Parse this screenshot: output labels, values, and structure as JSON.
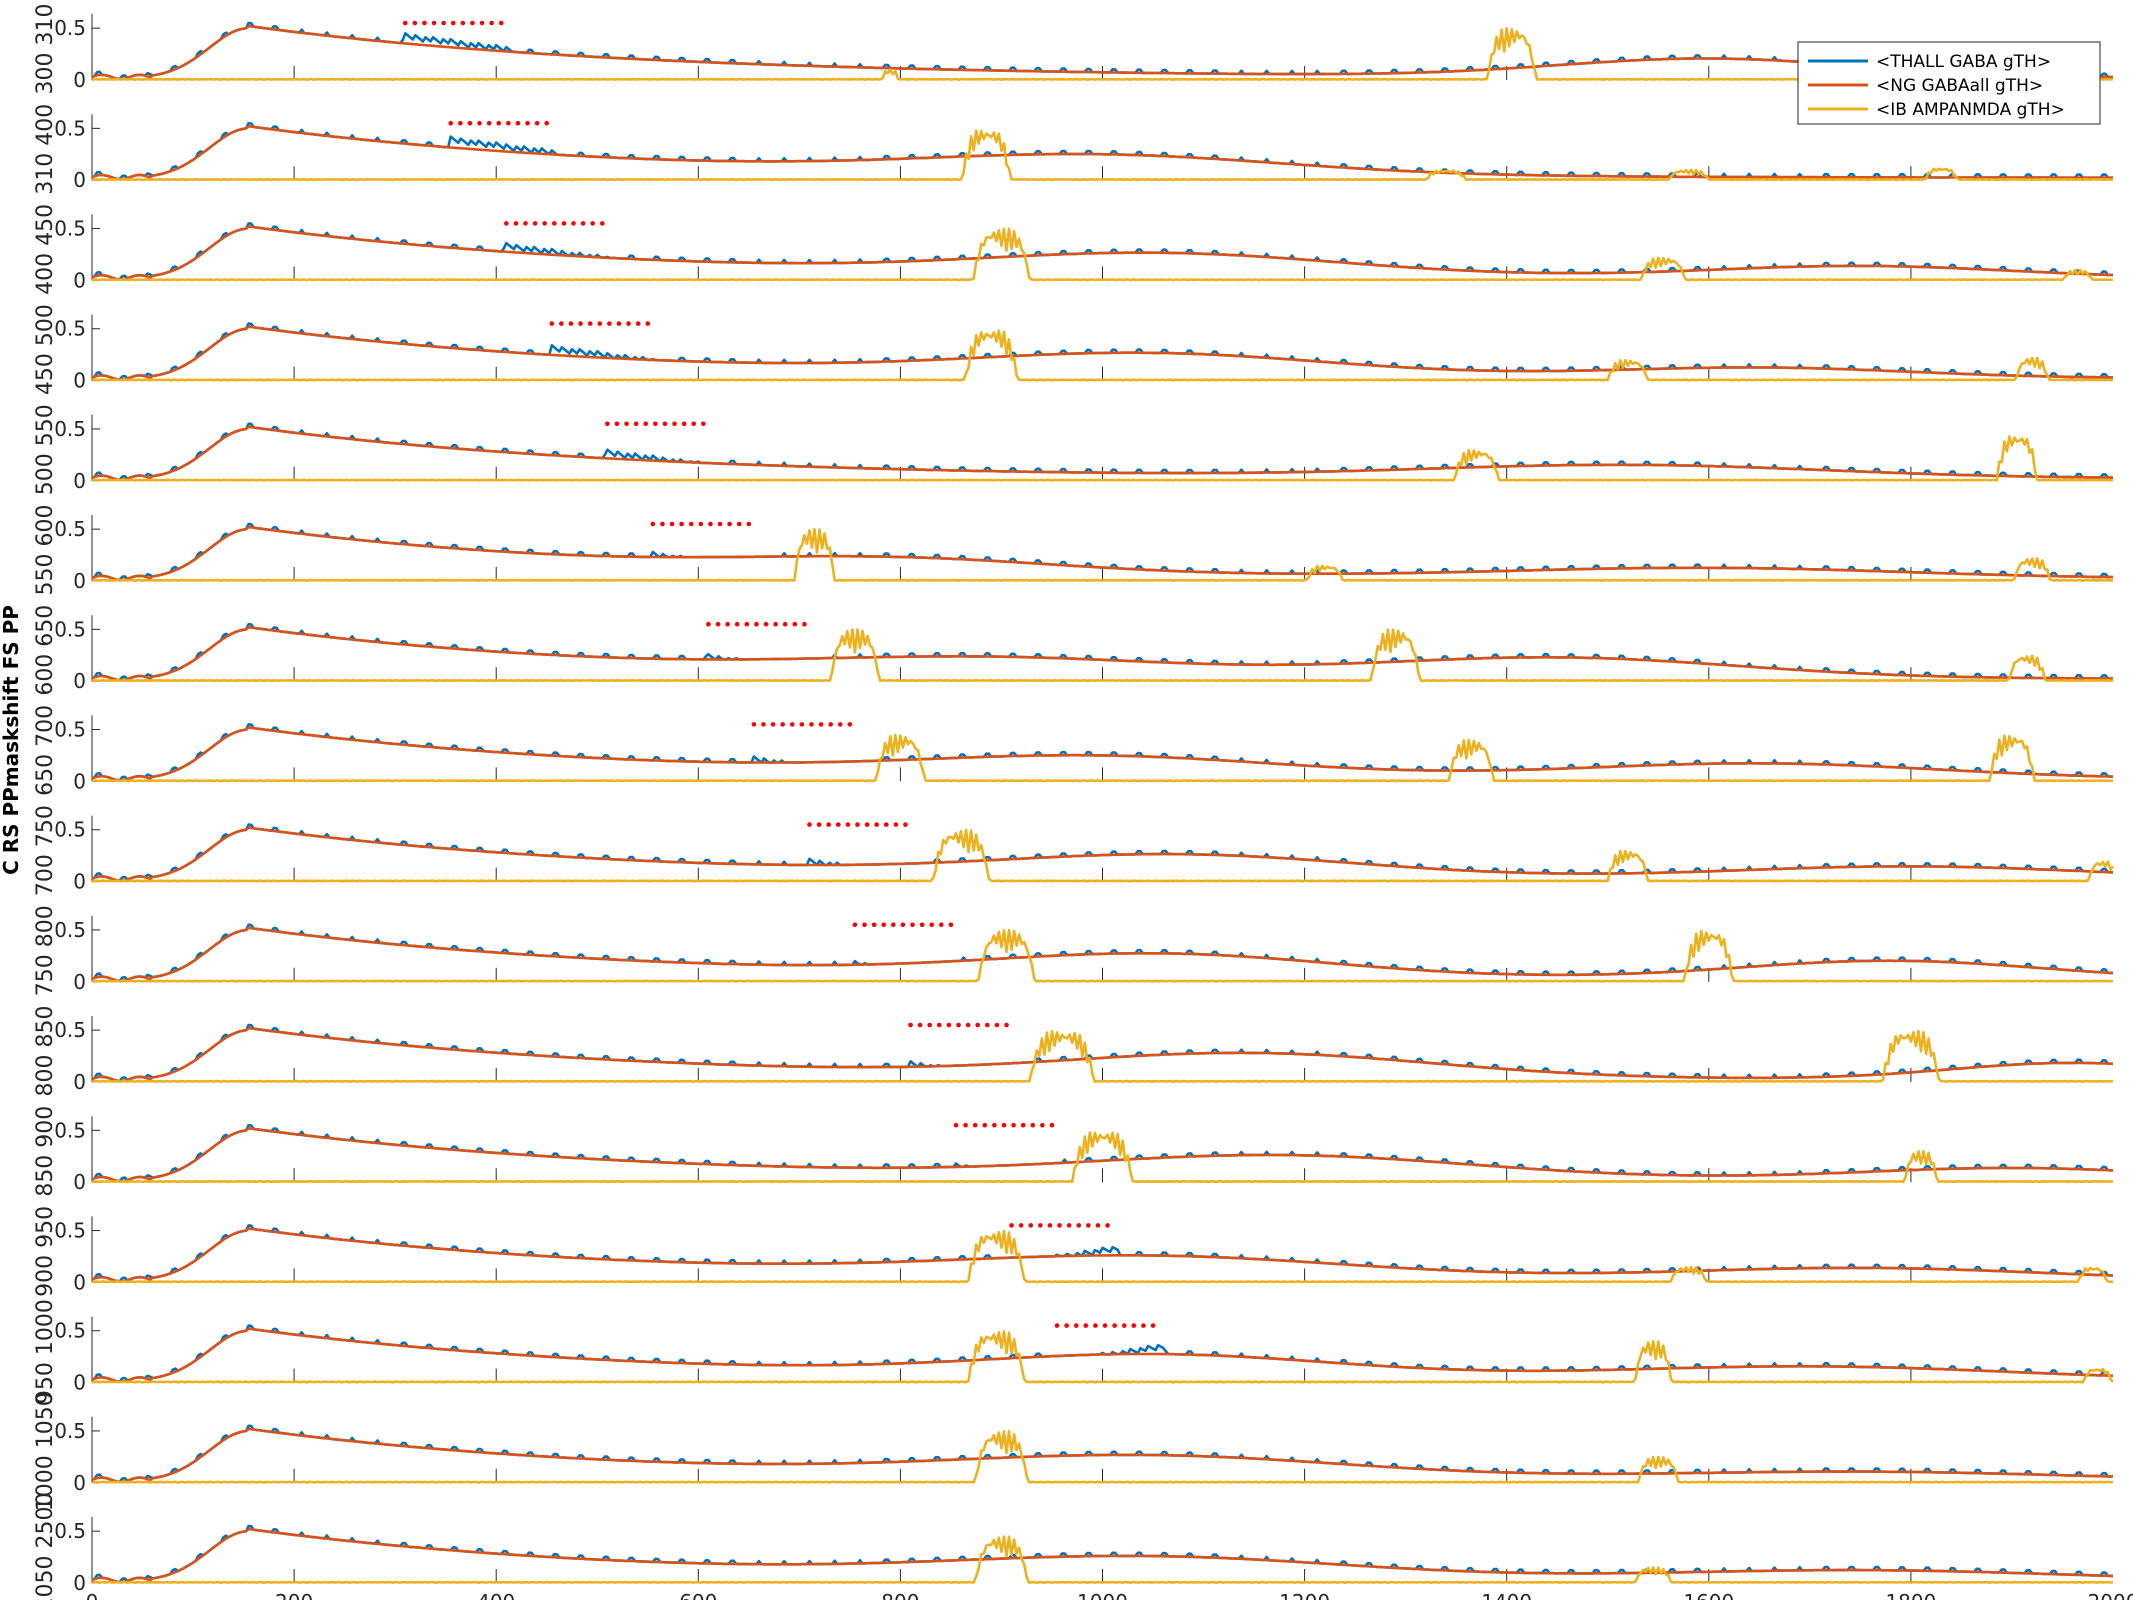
{
  "chart_data": {
    "type": "line",
    "title": "",
    "xlabel": "",
    "ylabel": "C RS PPmaskshift FS PP",
    "xlim": [
      0,
      2000
    ],
    "ylim": [
      0,
      0.55
    ],
    "grid": false,
    "x_ticks": [
      0,
      200,
      400,
      600,
      800,
      1000,
      1200,
      1400,
      1600,
      1800,
      2000
    ],
    "x_tick_labels": [
      "0",
      "200",
      "400",
      "600",
      "800",
      "1000",
      "1200",
      "1400",
      "1600",
      "1800",
      "2000"
    ],
    "y_ticks": [
      0,
      0.5
    ],
    "y_tick_labels": [
      "0",
      "0.5"
    ],
    "legend": {
      "position": "top-right",
      "entries": [
        {
          "name": "<THALL GABA gTH>",
          "color": "#0072BD"
        },
        {
          "name": "<NG GABAall gTH>",
          "color": "#D95319"
        },
        {
          "name": "<IB AMPANMDA gTH>",
          "color": "#EDB120"
        }
      ]
    },
    "pulse_marker_color": "#FF0000",
    "panels": [
      {
        "row_label": "300 310",
        "pulse_window": [
          310,
          405
        ],
        "gaba_start_level": 0.45,
        "bursts": [
          [
            790,
            0.1,
            8
          ],
          [
            1405,
            0.5,
            24
          ]
        ],
        "ng_bumps": [
          [
            1600,
            0.22,
            150
          ]
        ]
      },
      {
        "row_label": "310 400",
        "pulse_window": [
          355,
          450
        ],
        "gaba_start_level": 0.42,
        "bursts": [
          [
            885,
            0.5,
            24
          ],
          [
            1340,
            0.1,
            20
          ],
          [
            1580,
            0.1,
            20
          ],
          [
            1830,
            0.12,
            16
          ]
        ],
        "ng_bumps": [
          [
            1000,
            0.22,
            180
          ]
        ]
      },
      {
        "row_label": "400 450",
        "pulse_window": [
          410,
          505
        ],
        "gaba_start_level": 0.36,
        "bursts": [
          [
            900,
            0.5,
            28
          ],
          [
            1555,
            0.22,
            22
          ],
          [
            1965,
            0.1,
            14
          ]
        ],
        "ng_bumps": [
          [
            1060,
            0.25,
            180
          ],
          [
            1750,
            0.14,
            150
          ]
        ]
      },
      {
        "row_label": "450 500",
        "pulse_window": [
          455,
          550
        ],
        "gaba_start_level": 0.34,
        "bursts": [
          [
            890,
            0.5,
            26
          ],
          [
            1520,
            0.2,
            20
          ],
          [
            1920,
            0.22,
            16
          ]
        ],
        "ng_bumps": [
          [
            1050,
            0.25,
            180
          ],
          [
            1650,
            0.12,
            150
          ]
        ]
      },
      {
        "row_label": "500 550",
        "pulse_window": [
          510,
          605
        ],
        "gaba_start_level": 0.3,
        "bursts": [
          [
            1370,
            0.3,
            22
          ],
          [
            1905,
            0.45,
            20
          ]
        ],
        "ng_bumps": [
          [
            1520,
            0.15,
            200
          ]
        ]
      },
      {
        "row_label": "550 600",
        "pulse_window": [
          555,
          650
        ],
        "gaba_start_level": 0.28,
        "bursts": [
          [
            715,
            0.5,
            20
          ],
          [
            1220,
            0.15,
            18
          ],
          [
            1920,
            0.22,
            18
          ]
        ],
        "ng_bumps": [
          [
            800,
            0.15,
            160
          ],
          [
            1600,
            0.12,
            200
          ]
        ]
      },
      {
        "row_label": "600 650",
        "pulse_window": [
          610,
          705
        ],
        "gaba_start_level": 0.26,
        "bursts": [
          [
            755,
            0.5,
            24
          ],
          [
            1290,
            0.5,
            24
          ],
          [
            1915,
            0.25,
            18
          ]
        ],
        "ng_bumps": [
          [
            900,
            0.18,
            180
          ],
          [
            1450,
            0.24,
            180
          ]
        ]
      },
      {
        "row_label": "650 700",
        "pulse_window": [
          655,
          750
        ],
        "gaba_start_level": 0.24,
        "bursts": [
          [
            800,
            0.45,
            24
          ],
          [
            1365,
            0.4,
            22
          ],
          [
            1900,
            0.45,
            22
          ]
        ],
        "ng_bumps": [
          [
            1000,
            0.22,
            180
          ],
          [
            1650,
            0.18,
            180
          ]
        ]
      },
      {
        "row_label": "700 750",
        "pulse_window": [
          710,
          805
        ],
        "gaba_start_level": 0.22,
        "bursts": [
          [
            860,
            0.5,
            28
          ],
          [
            1520,
            0.3,
            20
          ],
          [
            1990,
            0.2,
            14
          ]
        ],
        "ng_bumps": [
          [
            1080,
            0.25,
            180
          ],
          [
            1800,
            0.15,
            180
          ]
        ]
      },
      {
        "row_label": "750 800",
        "pulse_window": [
          755,
          850
        ],
        "gaba_start_level": 0.2,
        "bursts": [
          [
            905,
            0.5,
            28
          ],
          [
            1600,
            0.5,
            24
          ]
        ],
        "ng_bumps": [
          [
            1060,
            0.26,
            170
          ],
          [
            1780,
            0.22,
            150
          ]
        ]
      },
      {
        "row_label": "800 850",
        "pulse_window": [
          810,
          905
        ],
        "gaba_start_level": 0.2,
        "bursts": [
          [
            960,
            0.5,
            32
          ],
          [
            1800,
            0.5,
            28
          ]
        ],
        "ng_bumps": [
          [
            1150,
            0.28,
            180
          ],
          [
            1960,
            0.2,
            120
          ]
        ]
      },
      {
        "row_label": "850 900",
        "pulse_window": [
          855,
          950
        ],
        "gaba_start_level": 0.18,
        "bursts": [
          [
            1000,
            0.5,
            30
          ],
          [
            1810,
            0.3,
            16
          ]
        ],
        "ng_bumps": [
          [
            1180,
            0.26,
            190
          ],
          [
            1900,
            0.14,
            150
          ]
        ]
      },
      {
        "row_label": "900 950",
        "pulse_window": [
          910,
          1005
        ],
        "gaba_start_level": 0.2,
        "gaba_ramp_to": 0.34,
        "bursts": [
          [
            895,
            0.5,
            28
          ],
          [
            1580,
            0.15,
            18
          ],
          [
            1980,
            0.15,
            14
          ]
        ],
        "ng_bumps": [
          [
            1050,
            0.24,
            200
          ],
          [
            1750,
            0.14,
            180
          ]
        ]
      },
      {
        "row_label": "950 1000",
        "pulse_window": [
          955,
          1050
        ],
        "gaba_start_level": 0.22,
        "gaba_ramp_to": 0.36,
        "bursts": [
          [
            895,
            0.5,
            28
          ],
          [
            1545,
            0.4,
            18
          ],
          [
            1985,
            0.14,
            14
          ]
        ],
        "ng_bumps": [
          [
            1060,
            0.26,
            180
          ],
          [
            1700,
            0.16,
            200
          ]
        ]
      },
      {
        "row_label": "1000 1050",
        "pulse_window": null,
        "gaba_start_level": 0,
        "bursts": [
          [
            900,
            0.5,
            26
          ],
          [
            1550,
            0.25,
            20
          ]
        ],
        "ng_bumps": [
          [
            1050,
            0.25,
            200
          ],
          [
            1750,
            0.1,
            200
          ]
        ]
      },
      {
        "row_label": "1050 2500",
        "pulse_window": null,
        "gaba_start_level": 0,
        "bursts": [
          [
            900,
            0.45,
            26
          ],
          [
            1545,
            0.15,
            18
          ]
        ],
        "ng_bumps": [
          [
            1050,
            0.24,
            200
          ],
          [
            1750,
            0.12,
            200
          ]
        ]
      }
    ]
  }
}
